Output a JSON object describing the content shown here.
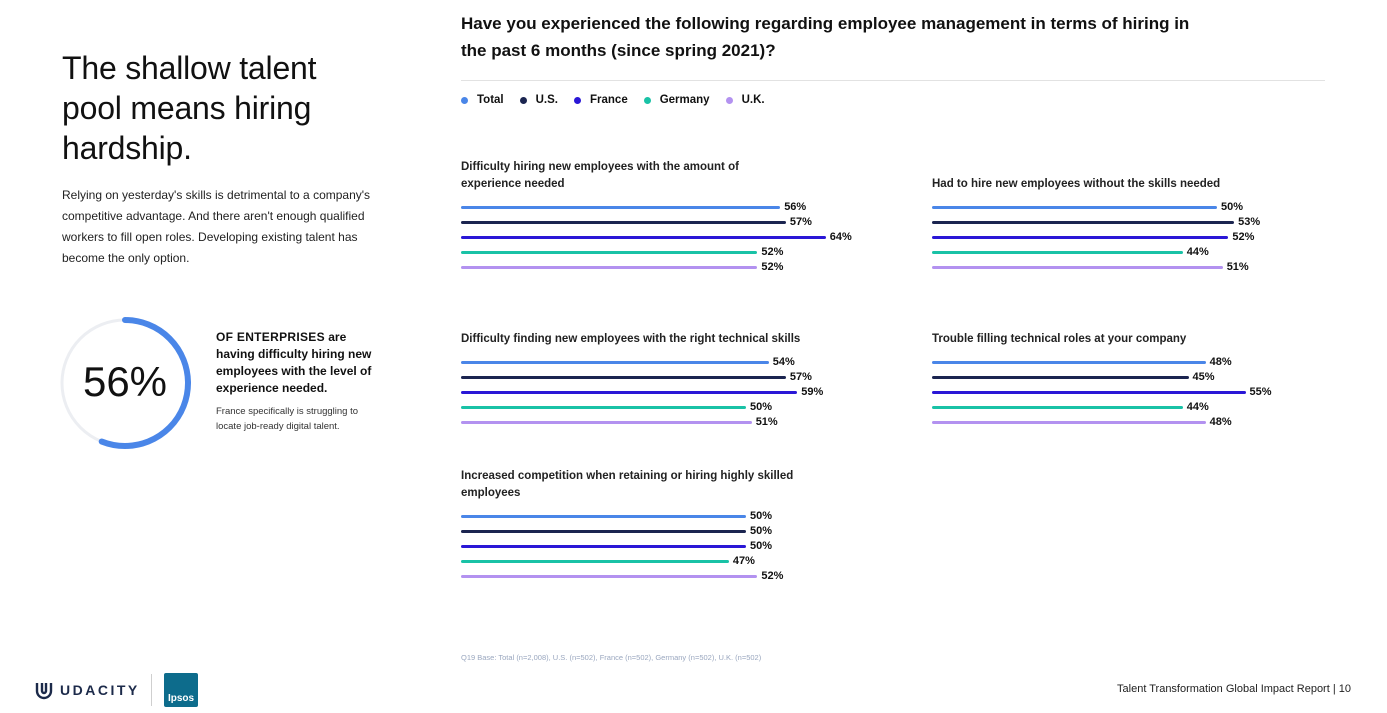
{
  "left": {
    "headline": "The shallow talent pool means hiring hardship.",
    "intro": "Relying on yesterday's skills is detrimental to a company's competitive advantage. And there aren't enough qualified workers to fill open roles. Developing existing talent has become the only option.",
    "stat": {
      "value": "56%",
      "fraction": 0.56,
      "lead": "OF ENTERPRISES",
      "text": " are having difficulty hiring new employees with the level of experience needed.",
      "note": "France specifically is struggling to locate job-ready digital talent."
    }
  },
  "question": "Have you experienced the following regarding employee management in terms of hiring in the past 6 months (since spring 2021)?",
  "legend": [
    {
      "label": "Total",
      "color": "#4a86e8"
    },
    {
      "label": "U.S.",
      "color": "#1b2550"
    },
    {
      "label": "France",
      "color": "#2a17d6"
    },
    {
      "label": "Germany",
      "color": "#19c2a6"
    },
    {
      "label": "U.K.",
      "color": "#b392f0"
    }
  ],
  "chart_data": {
    "type": "bar",
    "orientation": "horizontal",
    "series_names": [
      "Total",
      "U.S.",
      "France",
      "Germany",
      "U.K."
    ],
    "colors": [
      "#4a86e8",
      "#1b2550",
      "#2a17d6",
      "#19c2a6",
      "#b392f0"
    ],
    "panels": [
      {
        "title": "Difficulty hiring new employees with the amount of experience needed",
        "values": [
          56,
          57,
          64,
          52,
          52
        ]
      },
      {
        "title": "Had to hire new employees without the skills needed",
        "values": [
          50,
          53,
          52,
          44,
          51
        ]
      },
      {
        "title": "Difficulty finding new employees with the right technical skills",
        "values": [
          54,
          57,
          59,
          50,
          51
        ]
      },
      {
        "title": "Trouble filling technical roles at your company",
        "values": [
          48,
          45,
          55,
          44,
          48
        ]
      },
      {
        "title": "Increased competition when retaining or hiring highly skilled employees",
        "values": [
          50,
          50,
          50,
          47,
          52
        ]
      }
    ],
    "unit": "%"
  },
  "footnote": "Q19 Base: Total (n=2,008), U.S. (n=502), France (n=502), Germany (n=502), U.K. (n=502)",
  "footer": {
    "udacity": "UDACITY",
    "ipsos": "Ipsos",
    "report": "Talent Transformation Global Impact Report | 10"
  }
}
